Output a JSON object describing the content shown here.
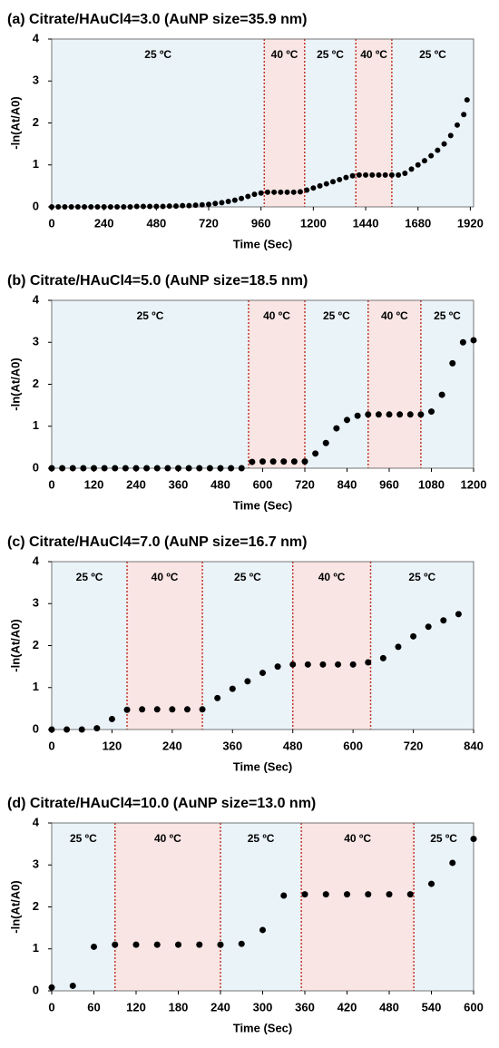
{
  "chart_data": [
    {
      "type": "scatter",
      "title": "(a) Citrate/HAuCl4=3.0 (AuNP size=35.9 nm)",
      "x_label": "Time (Sec)",
      "y_label": "-ln(At/A0)",
      "color": "#000000",
      "xlim": [
        0,
        1935
      ],
      "xticks": [
        0,
        240,
        480,
        720,
        960,
        1200,
        1440,
        1680,
        1920
      ],
      "ylim": [
        0,
        4
      ],
      "yticks": [
        0,
        1,
        2,
        3,
        4
      ],
      "regions": [
        {
          "start": 0,
          "end": 975,
          "label": "25 ºC",
          "color": "#eaf3f8"
        },
        {
          "start": 975,
          "end": 1160,
          "label": "40 ºC",
          "color": "#f9e5e4"
        },
        {
          "start": 1160,
          "end": 1395,
          "label": "25 ºC",
          "color": "#eaf3f8"
        },
        {
          "start": 1395,
          "end": 1560,
          "label": "40 ºC",
          "color": "#f9e5e4"
        },
        {
          "start": 1560,
          "end": 1935,
          "label": "25 ºC",
          "color": "#eaf3f8"
        }
      ],
      "x": [
        0,
        30,
        60,
        90,
        120,
        150,
        180,
        210,
        240,
        270,
        300,
        330,
        360,
        390,
        420,
        450,
        480,
        510,
        540,
        570,
        600,
        630,
        660,
        690,
        720,
        750,
        780,
        810,
        840,
        870,
        900,
        930,
        960,
        990,
        1020,
        1050,
        1080,
        1110,
        1140,
        1170,
        1200,
        1230,
        1260,
        1290,
        1320,
        1350,
        1380,
        1410,
        1440,
        1470,
        1500,
        1530,
        1560,
        1590,
        1620,
        1650,
        1680,
        1710,
        1740,
        1770,
        1800,
        1830,
        1860,
        1890,
        1905
      ],
      "values": [
        0,
        0,
        0,
        0,
        0,
        0,
        0,
        0,
        0,
        0,
        0,
        0,
        0,
        0.01,
        0.01,
        0.01,
        0.01,
        0.01,
        0.02,
        0.02,
        0.03,
        0.03,
        0.04,
        0.05,
        0.06,
        0.08,
        0.1,
        0.13,
        0.16,
        0.2,
        0.25,
        0.3,
        0.33,
        0.35,
        0.35,
        0.35,
        0.35,
        0.35,
        0.36,
        0.4,
        0.45,
        0.5,
        0.55,
        0.6,
        0.65,
        0.7,
        0.74,
        0.76,
        0.76,
        0.76,
        0.76,
        0.76,
        0.76,
        0.76,
        0.8,
        0.9,
        1.0,
        1.1,
        1.22,
        1.35,
        1.5,
        1.7,
        1.95,
        2.2,
        2.55
      ]
    },
    {
      "type": "scatter",
      "title": "(b) Citrate/HAuCl4=5.0 (AuNP size=18.5 nm)",
      "x_label": "Time (Sec)",
      "y_label": "-ln(At/A0)",
      "color": "#000000",
      "xlim": [
        0,
        1200
      ],
      "xticks": [
        0,
        120,
        240,
        360,
        480,
        600,
        720,
        840,
        960,
        1080,
        1200
      ],
      "ylim": [
        0,
        4
      ],
      "yticks": [
        0,
        1,
        2,
        3,
        4
      ],
      "regions": [
        {
          "start": 0,
          "end": 560,
          "label": "25 ºC",
          "color": "#eaf3f8"
        },
        {
          "start": 560,
          "end": 720,
          "label": "40 ºC",
          "color": "#f9e5e4"
        },
        {
          "start": 720,
          "end": 900,
          "label": "25 ºC",
          "color": "#eaf3f8"
        },
        {
          "start": 900,
          "end": 1050,
          "label": "40 ºC",
          "color": "#f9e5e4"
        },
        {
          "start": 1050,
          "end": 1200,
          "label": "25 ºC",
          "color": "#eaf3f8"
        }
      ],
      "x": [
        0,
        30,
        60,
        90,
        120,
        150,
        180,
        210,
        240,
        270,
        300,
        330,
        360,
        390,
        420,
        450,
        480,
        510,
        540,
        570,
        600,
        630,
        660,
        690,
        720,
        750,
        780,
        810,
        840,
        870,
        900,
        930,
        960,
        990,
        1020,
        1050,
        1080,
        1110,
        1140,
        1170,
        1200
      ],
      "values": [
        0,
        0,
        0,
        0,
        0,
        0,
        0,
        0,
        0,
        0,
        0,
        0,
        0,
        0,
        0,
        0,
        0,
        0,
        0,
        0.15,
        0.16,
        0.16,
        0.16,
        0.16,
        0.16,
        0.35,
        0.6,
        0.95,
        1.15,
        1.25,
        1.28,
        1.28,
        1.28,
        1.28,
        1.28,
        1.28,
        1.35,
        1.75,
        2.5,
        3.0,
        3.05
      ]
    },
    {
      "type": "scatter",
      "title": "(c) Citrate/HAuCl4=7.0 (AuNP size=16.7 nm)",
      "x_label": "Time (Sec)",
      "y_label": "-ln(At/A0)",
      "color": "#000000",
      "xlim": [
        0,
        840
      ],
      "xticks": [
        0,
        120,
        240,
        360,
        480,
        600,
        720,
        840
      ],
      "ylim": [
        0,
        4
      ],
      "yticks": [
        0,
        1,
        2,
        3,
        4
      ],
      "regions": [
        {
          "start": 0,
          "end": 150,
          "label": "25 ºC",
          "color": "#eaf3f8"
        },
        {
          "start": 150,
          "end": 300,
          "label": "40 ºC",
          "color": "#f9e5e4"
        },
        {
          "start": 300,
          "end": 480,
          "label": "25 ºC",
          "color": "#eaf3f8"
        },
        {
          "start": 480,
          "end": 635,
          "label": "40 ºC",
          "color": "#f9e5e4"
        },
        {
          "start": 635,
          "end": 840,
          "label": "25 ºC",
          "color": "#eaf3f8"
        }
      ],
      "x": [
        0,
        30,
        60,
        90,
        120,
        150,
        180,
        210,
        240,
        270,
        300,
        330,
        360,
        390,
        420,
        450,
        480,
        510,
        540,
        570,
        600,
        630,
        660,
        690,
        720,
        750,
        780,
        810
      ],
      "values": [
        0,
        0,
        0,
        0.03,
        0.25,
        0.47,
        0.48,
        0.48,
        0.48,
        0.48,
        0.48,
        0.75,
        0.97,
        1.15,
        1.35,
        1.5,
        1.55,
        1.55,
        1.55,
        1.55,
        1.55,
        1.6,
        1.7,
        1.97,
        2.22,
        2.45,
        2.6,
        2.75
      ]
    },
    {
      "type": "scatter",
      "title": "(d) Citrate/HAuCl4=10.0 (AuNP size=13.0 nm)",
      "x_label": "Time (Sec)",
      "y_label": "-ln(At/A0)",
      "color": "#000000",
      "xlim": [
        0,
        600
      ],
      "xticks": [
        0,
        60,
        120,
        180,
        240,
        300,
        360,
        420,
        480,
        540,
        600
      ],
      "ylim": [
        0,
        4
      ],
      "yticks": [
        0,
        1,
        2,
        3,
        4
      ],
      "regions": [
        {
          "start": 0,
          "end": 90,
          "label": "25 ºC",
          "color": "#eaf3f8"
        },
        {
          "start": 90,
          "end": 240,
          "label": "40 ºC",
          "color": "#f9e5e4"
        },
        {
          "start": 240,
          "end": 355,
          "label": "25 ºC",
          "color": "#eaf3f8"
        },
        {
          "start": 355,
          "end": 515,
          "label": "40 ºC",
          "color": "#f9e5e4"
        },
        {
          "start": 515,
          "end": 600,
          "label": "25 ºC",
          "color": "#eaf3f8"
        }
      ],
      "x": [
        0,
        30,
        60,
        90,
        120,
        150,
        180,
        210,
        240,
        270,
        300,
        330,
        360,
        390,
        420,
        450,
        480,
        510,
        540,
        570,
        600
      ],
      "values": [
        0.08,
        0.12,
        1.05,
        1.1,
        1.1,
        1.1,
        1.1,
        1.1,
        1.1,
        1.12,
        1.45,
        2.27,
        2.3,
        2.3,
        2.3,
        2.3,
        2.3,
        2.3,
        2.55,
        3.05,
        3.62
      ]
    }
  ]
}
